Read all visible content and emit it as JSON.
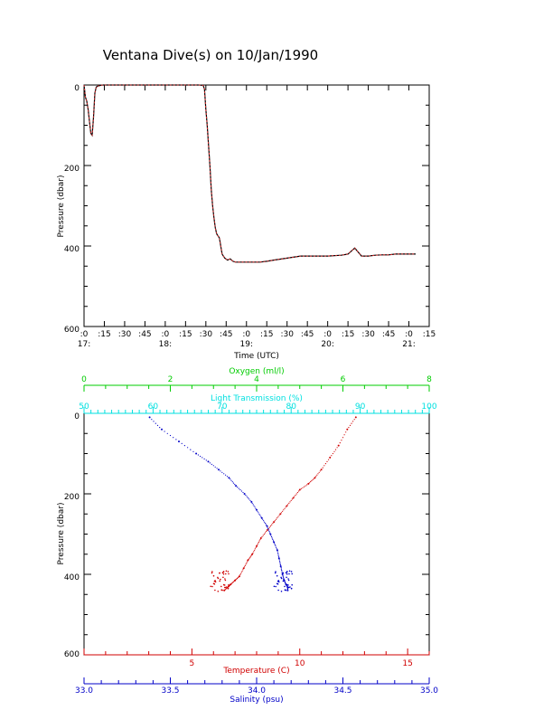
{
  "title": "Ventana Dive(s) on 10/Jan/1990",
  "colors": {
    "axis": "#000000",
    "temperature": "#d00000",
    "salinity": "#0000c8",
    "oxygen": "#00cc00",
    "light": "#00e0e0",
    "trace_dark": "#000000",
    "trace_red": "#ff2a2a"
  },
  "chart_data": [
    {
      "type": "line",
      "title": "Ventana Dive(s) on 10/Jan/1990",
      "xlabel": "Time (UTC)",
      "ylabel": "Pressure (dbar)",
      "xlim_minutes_after_17": [
        0,
        255
      ],
      "ylim": [
        600,
        0
      ],
      "y_ticks": [
        "0",
        "200",
        "400",
        "600"
      ],
      "x_tick_labels": [
        ":0",
        ":15",
        ":30",
        ":45",
        ":0",
        ":15",
        ":30",
        ":45",
        ":0",
        ":15",
        ":30",
        ":45",
        ":0",
        ":15",
        ":30",
        ":45",
        ":0",
        ":15"
      ],
      "hour_labels": [
        "17:",
        "18:",
        "19:",
        "20:",
        "21:"
      ],
      "series": [
        {
          "x_minutes_after_17": [
            0,
            1,
            2,
            3,
            4,
            5,
            6,
            7,
            8,
            9,
            10,
            11,
            12,
            14,
            16,
            18,
            20,
            25,
            30,
            40,
            50,
            60,
            70,
            80,
            85,
            88,
            89,
            90,
            91,
            92,
            93,
            94,
            95,
            96,
            97,
            98,
            100,
            102,
            104,
            106,
            108,
            110,
            112,
            115,
            120,
            125,
            130,
            135,
            140,
            150,
            160,
            170,
            180,
            190,
            195,
            200,
            205,
            210,
            215,
            220,
            225,
            230,
            235,
            240,
            245
          ],
          "y": [
            0,
            30,
            40,
            60,
            90,
            120,
            125,
            80,
            20,
            5,
            3,
            2,
            1,
            0,
            0,
            0,
            0,
            0,
            0,
            0,
            0,
            0,
            0,
            0,
            0,
            1,
            10,
            60,
            100,
            150,
            200,
            260,
            300,
            330,
            355,
            370,
            380,
            420,
            430,
            435,
            432,
            438,
            440,
            440,
            440,
            440,
            440,
            438,
            435,
            430,
            425,
            425,
            425,
            423,
            420,
            405,
            425,
            425,
            423,
            422,
            422,
            420,
            420,
            420,
            420
          ]
        }
      ]
    },
    {
      "type": "scatter",
      "xlabel": "Temperature (C)",
      "ylabel": "Pressure (dbar)",
      "ylim": [
        600,
        0
      ],
      "y_ticks": [
        "0",
        "200",
        "400",
        "600"
      ],
      "axes": {
        "oxygen": {
          "label": "Oxygen (ml/l)",
          "range": [
            0,
            8
          ],
          "ticks": [
            "0",
            "2",
            "4",
            "6",
            "8"
          ]
        },
        "light": {
          "label": "Light Transmission (%)",
          "range": [
            50,
            100
          ],
          "ticks": [
            "50",
            "60",
            "70",
            "80",
            "90",
            "100"
          ]
        },
        "temperature": {
          "label": "Temperature (C)",
          "range": [
            0,
            16
          ],
          "ticks": [
            "5",
            "10",
            "15"
          ]
        },
        "salinity": {
          "label": "Salinity (psu)",
          "range": [
            33.0,
            35.0
          ],
          "ticks": [
            "33.0",
            "33.5",
            "34.0",
            "34.5",
            "35.0"
          ]
        }
      },
      "series": [
        {
          "name": "Temperature (C)",
          "x": [
            12.6,
            12.2,
            11.8,
            11.4,
            11.0,
            10.7,
            10.4,
            10.0,
            9.7,
            9.4,
            9.1,
            8.8,
            8.5,
            8.2,
            8.0,
            7.8,
            7.6,
            7.4,
            7.2,
            7.0,
            6.8,
            6.7,
            6.5
          ],
          "y": [
            10,
            40,
            80,
            110,
            140,
            160,
            175,
            190,
            210,
            230,
            250,
            270,
            290,
            310,
            330,
            350,
            365,
            385,
            405,
            415,
            425,
            430,
            440
          ]
        },
        {
          "name": "Salinity (psu)",
          "x": [
            33.38,
            33.45,
            33.55,
            33.65,
            33.72,
            33.78,
            33.84,
            33.88,
            33.93,
            33.97,
            34.0,
            34.03,
            34.06,
            34.08,
            34.1,
            34.12,
            34.13,
            34.14,
            34.15,
            34.16,
            34.17,
            34.18,
            34.18
          ],
          "y": [
            10,
            40,
            70,
            100,
            120,
            140,
            160,
            180,
            200,
            220,
            240,
            260,
            280,
            300,
            320,
            340,
            360,
            380,
            400,
            415,
            425,
            432,
            440
          ]
        }
      ]
    }
  ]
}
